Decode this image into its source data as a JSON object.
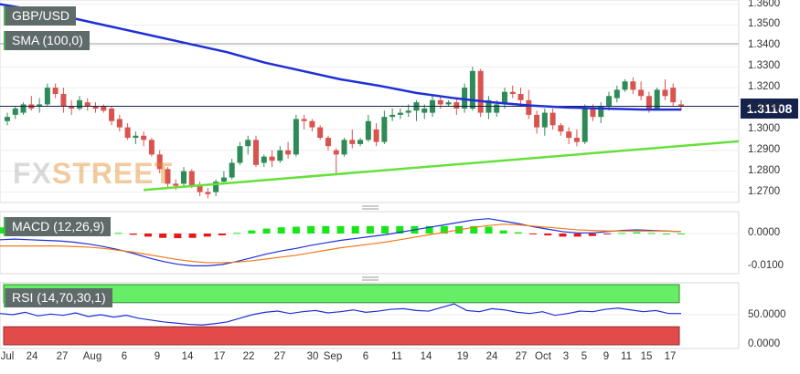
{
  "chart_data": {
    "type": "candlestick",
    "instrument": "GBP/USD",
    "indicators": {
      "sma": {
        "label": "SMA (100,0)",
        "color": "#1f2fd6"
      },
      "macd": {
        "label": "MACD (12,26,9)",
        "zero_label": "0.0000",
        "neg_label": "-0.0100"
      },
      "rsi": {
        "label": "RSI (14,70,30,1)",
        "mid_label": "50.0000",
        "low_label": "0.0000"
      }
    },
    "current_price": "1.31108",
    "price_axis": {
      "min": 1.265,
      "max": 1.362,
      "ticks": [
        "1.3600",
        "1.3500",
        "1.3400",
        "1.3300",
        "1.3200",
        "1.3100",
        "1.3000",
        "1.2900",
        "1.2800",
        "1.2700"
      ]
    },
    "x_axis_labels": [
      "Jul",
      "24",
      "27",
      "Aug",
      "6",
      "9",
      "14",
      "17",
      "22",
      "27",
      "30",
      "Sep",
      "6",
      "11",
      "14",
      "19",
      "24",
      "27",
      "Oct",
      "3",
      "5",
      "9",
      "11",
      "15",
      "17"
    ],
    "colors": {
      "up": "#2e8b57",
      "down": "#d9534f",
      "sma": "#1f2fd6",
      "trendline": "#66e03a",
      "macd_line": "#1f2fd6",
      "signal_line": "#f07a1a",
      "hist_pos": "#19e619",
      "hist_neg": "#e61919",
      "rsi_ob": "#66ee66",
      "rsi_os": "#e34b4b"
    },
    "candles": [
      [
        1.304,
        1.308,
        1.302,
        1.306
      ],
      [
        1.307,
        1.311,
        1.305,
        1.31
      ],
      [
        1.308,
        1.313,
        1.307,
        1.312
      ],
      [
        1.312,
        1.316,
        1.309,
        1.31
      ],
      [
        1.311,
        1.315,
        1.308,
        1.312
      ],
      [
        1.312,
        1.322,
        1.311,
        1.32
      ],
      [
        1.32,
        1.322,
        1.315,
        1.317
      ],
      [
        1.317,
        1.32,
        1.308,
        1.311
      ],
      [
        1.311,
        1.314,
        1.307,
        1.31
      ],
      [
        1.31,
        1.316,
        1.309,
        1.314
      ],
      [
        1.313,
        1.315,
        1.309,
        1.311
      ],
      [
        1.311,
        1.313,
        1.308,
        1.31
      ],
      [
        1.311,
        1.312,
        1.308,
        1.309
      ],
      [
        1.31,
        1.311,
        1.302,
        1.304
      ],
      [
        1.305,
        1.307,
        1.299,
        1.301
      ],
      [
        1.301,
        1.303,
        1.295,
        1.296
      ],
      [
        1.296,
        1.299,
        1.293,
        1.297
      ],
      [
        1.297,
        1.299,
        1.292,
        1.295
      ],
      [
        1.295,
        1.296,
        1.287,
        1.288
      ],
      [
        1.288,
        1.29,
        1.279,
        1.281
      ],
      [
        1.281,
        1.282,
        1.272,
        1.274
      ],
      [
        1.274,
        1.276,
        1.271,
        1.273
      ],
      [
        1.274,
        1.282,
        1.272,
        1.28
      ],
      [
        1.28,
        1.281,
        1.272,
        1.273
      ],
      [
        1.273,
        1.275,
        1.268,
        1.27
      ],
      [
        1.27,
        1.272,
        1.267,
        1.269
      ],
      [
        1.27,
        1.276,
        1.268,
        1.275
      ],
      [
        1.275,
        1.28,
        1.274,
        1.277
      ],
      [
        1.277,
        1.286,
        1.276,
        1.284
      ],
      [
        1.284,
        1.294,
        1.283,
        1.292
      ],
      [
        1.292,
        1.297,
        1.288,
        1.295
      ],
      [
        1.295,
        1.297,
        1.282,
        1.283
      ],
      [
        1.284,
        1.288,
        1.282,
        1.287
      ],
      [
        1.287,
        1.29,
        1.282,
        1.285
      ],
      [
        1.285,
        1.292,
        1.284,
        1.29
      ],
      [
        1.29,
        1.294,
        1.286,
        1.288
      ],
      [
        1.288,
        1.307,
        1.287,
        1.305
      ],
      [
        1.305,
        1.307,
        1.3,
        1.304
      ],
      [
        1.304,
        1.305,
        1.299,
        1.301
      ],
      [
        1.301,
        1.302,
        1.295,
        1.296
      ],
      [
        1.296,
        1.297,
        1.29,
        1.292
      ],
      [
        1.29,
        1.291,
        1.278,
        1.288
      ],
      [
        1.288,
        1.296,
        1.287,
        1.295
      ],
      [
        1.295,
        1.3,
        1.291,
        1.293
      ],
      [
        1.293,
        1.296,
        1.292,
        1.295
      ],
      [
        1.295,
        1.307,
        1.294,
        1.304
      ],
      [
        1.3,
        1.303,
        1.292,
        1.294
      ],
      [
        1.294,
        1.309,
        1.293,
        1.306
      ],
      [
        1.306,
        1.31,
        1.304,
        1.307
      ],
      [
        1.307,
        1.31,
        1.305,
        1.308
      ],
      [
        1.308,
        1.312,
        1.306,
        1.309
      ],
      [
        1.309,
        1.314,
        1.304,
        1.313
      ],
      [
        1.308,
        1.312,
        1.305,
        1.31
      ],
      [
        1.308,
        1.316,
        1.306,
        1.314
      ],
      [
        1.314,
        1.316,
        1.31,
        1.312
      ],
      [
        1.312,
        1.314,
        1.311,
        1.313
      ],
      [
        1.313,
        1.315,
        1.307,
        1.31
      ],
      [
        1.31,
        1.322,
        1.308,
        1.32
      ],
      [
        1.31,
        1.33,
        1.309,
        1.328
      ],
      [
        1.328,
        1.329,
        1.306,
        1.308
      ],
      [
        1.308,
        1.316,
        1.305,
        1.314
      ],
      [
        1.308,
        1.314,
        1.306,
        1.312
      ],
      [
        1.312,
        1.32,
        1.31,
        1.318
      ],
      [
        1.318,
        1.321,
        1.315,
        1.317
      ],
      [
        1.317,
        1.32,
        1.312,
        1.314
      ],
      [
        1.314,
        1.319,
        1.305,
        1.307
      ],
      [
        1.307,
        1.309,
        1.298,
        1.301
      ],
      [
        1.301,
        1.31,
        1.297,
        1.308
      ],
      [
        1.308,
        1.31,
        1.3,
        1.302
      ],
      [
        1.302,
        1.303,
        1.297,
        1.299
      ],
      [
        1.299,
        1.301,
        1.293,
        1.296
      ],
      [
        1.296,
        1.3,
        1.292,
        1.294
      ],
      [
        1.294,
        1.312,
        1.293,
        1.31
      ],
      [
        1.31,
        1.312,
        1.304,
        1.306
      ],
      [
        1.306,
        1.313,
        1.303,
        1.311
      ],
      [
        1.311,
        1.318,
        1.309,
        1.316
      ],
      [
        1.315,
        1.321,
        1.313,
        1.319
      ],
      [
        1.319,
        1.324,
        1.318,
        1.323
      ],
      [
        1.323,
        1.325,
        1.317,
        1.319
      ],
      [
        1.319,
        1.323,
        1.314,
        1.316
      ],
      [
        1.316,
        1.318,
        1.308,
        1.31
      ],
      [
        1.31,
        1.32,
        1.309,
        1.319
      ],
      [
        1.319,
        1.324,
        1.314,
        1.316
      ],
      [
        1.32,
        1.322,
        1.311,
        1.313
      ],
      [
        1.312,
        1.314,
        1.309,
        1.311
      ]
    ],
    "sma_values": [
      1.36,
      1.357,
      1.353,
      1.349,
      1.345,
      1.341,
      1.337,
      1.332,
      1.328,
      1.324,
      1.321,
      1.3175,
      1.315,
      1.313,
      1.3115,
      1.3105,
      1.31,
      1.3095,
      1.3095
    ],
    "trendline": {
      "from": [
        17,
        1.271
      ],
      "to": [
        106,
        1.299
      ]
    },
    "macd_line": [
      -0.002,
      -0.0018,
      -0.002,
      -0.0022,
      -0.0024,
      -0.0028,
      -0.0034,
      -0.0042,
      -0.0052,
      -0.0064,
      -0.0078,
      -0.009,
      -0.0099,
      -0.0104,
      -0.0104,
      -0.01,
      -0.009,
      -0.0078,
      -0.0066,
      -0.0056,
      -0.0048,
      -0.0038,
      -0.003,
      -0.0022,
      -0.0016,
      -0.001,
      -0.0004,
      0.0004,
      0.0012,
      0.002,
      0.0028,
      0.0036,
      0.0044,
      0.0048,
      0.004,
      0.0032,
      0.0022,
      0.0014,
      0.0006,
      0.0002,
      0.0002,
      0.0006,
      0.001,
      0.0012,
      0.001,
      0.0008,
      0.0006
    ],
    "signal_line": [
      -0.004,
      -0.004,
      -0.004,
      -0.004,
      -0.004,
      -0.0042,
      -0.0044,
      -0.0048,
      -0.0054,
      -0.006,
      -0.0068,
      -0.0076,
      -0.0084,
      -0.009,
      -0.0094,
      -0.0094,
      -0.0092,
      -0.0088,
      -0.0082,
      -0.0076,
      -0.007,
      -0.0062,
      -0.0054,
      -0.0046,
      -0.004,
      -0.0034,
      -0.0028,
      -0.002,
      -0.0012,
      -0.0004,
      0.0004,
      0.0012,
      0.002,
      0.0026,
      0.003,
      0.0028,
      0.0024,
      0.002,
      0.0016,
      0.0012,
      0.001,
      0.0008,
      0.0008,
      0.0008,
      0.0008,
      0.0008,
      0.0006
    ],
    "rsi_values": [
      52,
      50,
      54,
      48,
      51,
      49,
      53,
      47,
      50,
      46,
      49,
      44,
      41,
      38,
      36,
      34,
      33,
      35,
      38,
      44,
      50,
      54,
      56,
      52,
      55,
      57,
      53,
      55,
      58,
      54,
      56,
      59,
      60,
      57,
      56,
      62,
      68,
      57,
      55,
      60,
      58,
      54,
      52,
      55,
      49,
      52,
      56,
      55,
      59,
      61,
      58,
      55,
      57,
      52,
      52
    ]
  }
}
